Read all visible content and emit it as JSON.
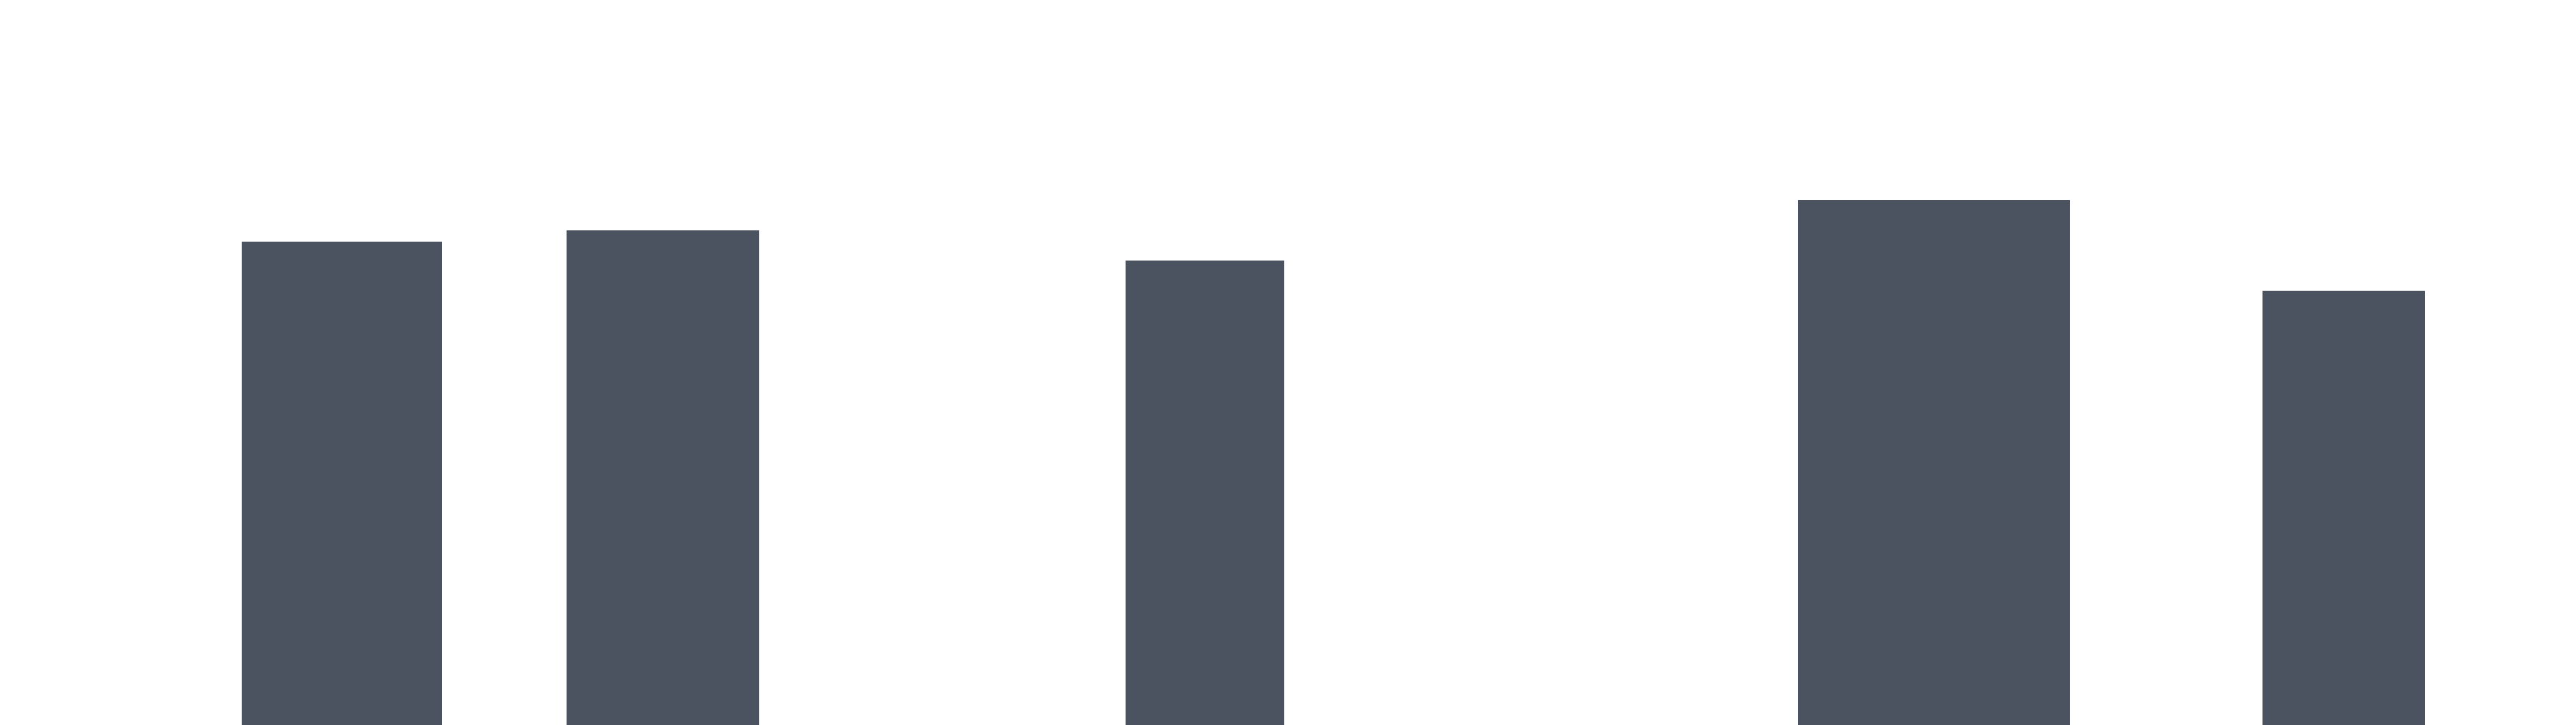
{
  "colors": {
    "background": "#ffffff",
    "bar": "#4b5260"
  },
  "chart_data": {
    "type": "bar",
    "values": [
      640,
      655,
      615,
      695,
      575
    ],
    "ylim": [
      0,
      960
    ],
    "grid": false,
    "legend": "none"
  }
}
